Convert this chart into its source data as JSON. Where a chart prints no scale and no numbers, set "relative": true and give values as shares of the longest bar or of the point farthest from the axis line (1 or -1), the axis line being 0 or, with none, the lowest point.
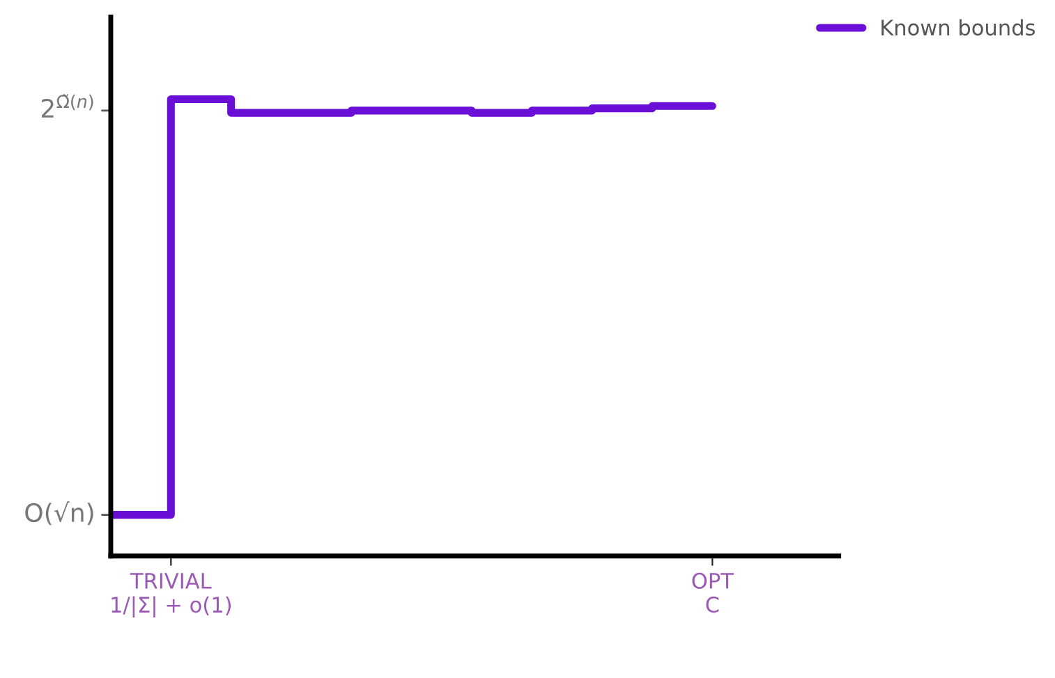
{
  "chart_data": {
    "type": "step",
    "relative": true,
    "categories": [
      null,
      "TRIVIAL\n1/|Σ| + o(1)",
      null,
      null,
      null,
      null,
      null,
      null,
      null,
      null,
      "OPT\nC",
      null,
      null
    ],
    "series": [
      {
        "name": "Known bounds",
        "color": "#6a0fd6",
        "values": [
          0.09,
          1.0,
          0.97,
          0.97,
          0.975,
          0.975,
          0.97,
          0.975,
          0.98,
          0.985,
          0.985,
          null,
          null
        ]
      }
    ],
    "annotations": [
      "O(√n)",
      "2$^{Ω̃(n)}$"
    ],
    "legend": "top right",
    "line_style": "solid"
  }
}
